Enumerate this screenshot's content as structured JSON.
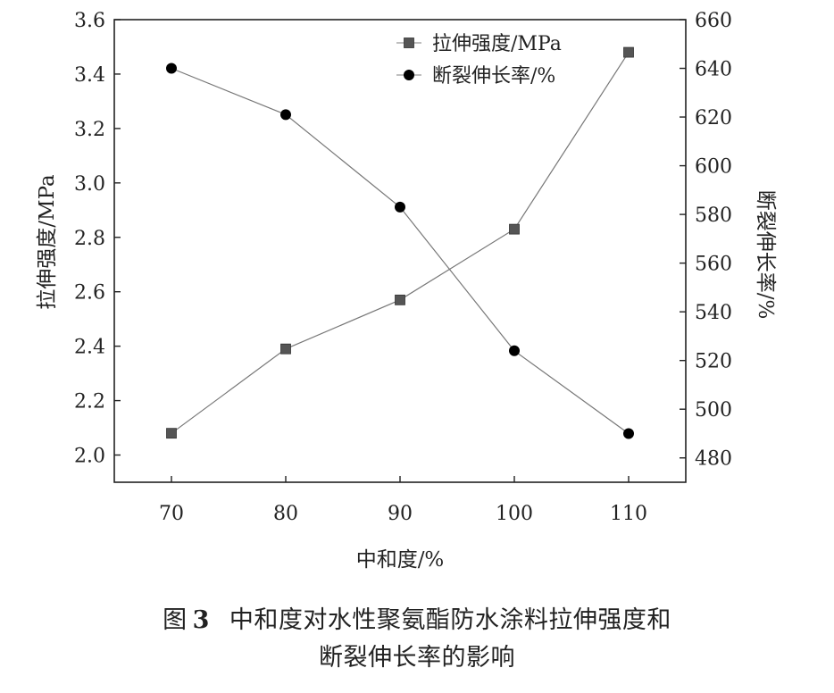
{
  "chart_data": {
    "type": "line",
    "x": [
      70,
      80,
      90,
      100,
      110
    ],
    "xlabel": "中和度/%",
    "xlim": [
      65,
      115
    ],
    "y_left": {
      "label": "拉伸强度/MPa",
      "lim": [
        1.9,
        3.6
      ],
      "ticks": [
        2.0,
        2.2,
        2.4,
        2.6,
        2.8,
        3.0,
        3.2,
        3.4,
        3.6
      ],
      "tick_labels": [
        "2.0",
        "2.2",
        "2.4",
        "2.6",
        "2.8",
        "3.0",
        "3.2",
        "3.4",
        "3.6"
      ]
    },
    "y_right": {
      "label": "断裂伸长率/%",
      "lim": [
        470,
        660
      ],
      "ticks": [
        480,
        500,
        520,
        540,
        560,
        580,
        600,
        620,
        640,
        660
      ],
      "tick_labels": [
        "480",
        "500",
        "520",
        "540",
        "560",
        "580",
        "600",
        "620",
        "640",
        "660"
      ]
    },
    "x_tick_labels": [
      "70",
      "80",
      "90",
      "100",
      "110"
    ],
    "series": [
      {
        "name": "拉伸强度/MPa",
        "axis": "left",
        "marker": "square",
        "color": "#555555",
        "values": [
          2.08,
          2.39,
          2.57,
          2.83,
          3.48
        ]
      },
      {
        "name": "断裂伸长率/%",
        "axis": "right",
        "marker": "circle",
        "color": "#000000",
        "values": [
          640,
          621,
          583,
          524,
          490
        ]
      }
    ],
    "legend_position": "top-right",
    "grid": false
  },
  "caption": {
    "fig_label": "图",
    "fig_number": "3",
    "line1": "中和度对水性聚氨酯防水涂料拉伸强度和",
    "line2": "断裂伸长率的影响"
  }
}
